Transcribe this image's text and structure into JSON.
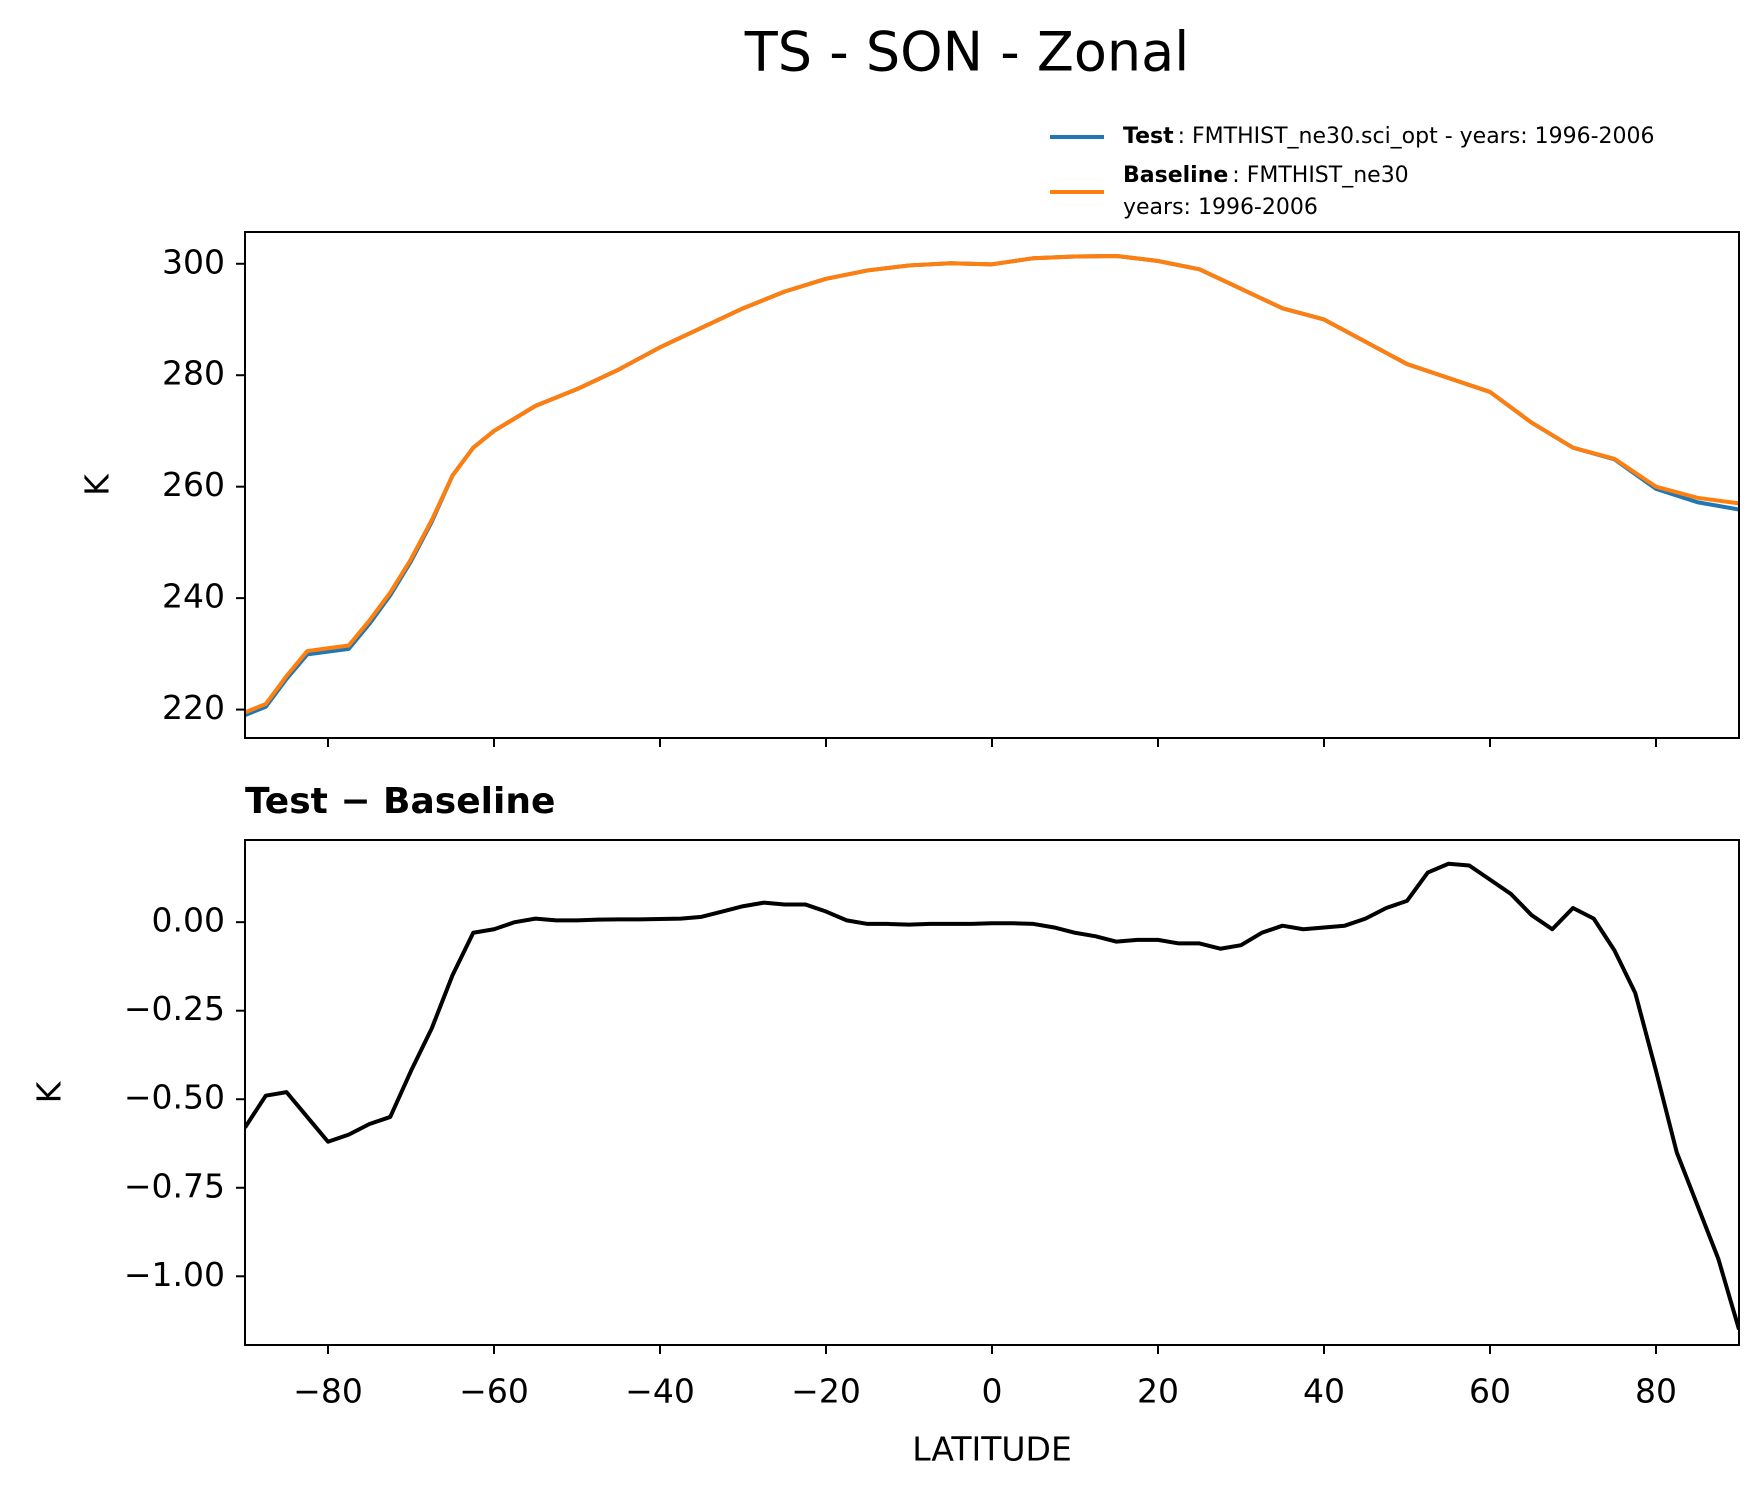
{
  "chart_data": [
    {
      "type": "line",
      "title": "TS - SON - Zonal",
      "ylabel": "K",
      "x": [
        -90,
        -87.5,
        -85,
        -82.5,
        -80,
        -77.5,
        -75,
        -72.5,
        -70,
        -67.5,
        -65,
        -62.5,
        -60,
        -55,
        -50,
        -45,
        -40,
        -35,
        -30,
        -25,
        -20,
        -15,
        -10,
        -5,
        0,
        5,
        10,
        15,
        20,
        25,
        30,
        35,
        40,
        45,
        50,
        55,
        60,
        65,
        70,
        75,
        80,
        85,
        90
      ],
      "series": [
        {
          "name": "Test",
          "label_lines": [
            ": FMTHIST_ne30.sci_opt - years: 1996-2006"
          ],
          "color": "#1f77b4",
          "values": [
            219,
            220.5,
            225.5,
            229.9,
            230.4,
            230.9,
            235.4,
            240.5,
            246.6,
            253.7,
            262,
            267,
            270,
            274.5,
            277.5,
            281,
            285,
            288.5,
            292,
            295,
            297.3,
            298.8,
            299.7,
            300.1,
            299.9,
            301,
            301.3,
            301.4,
            300.5,
            299,
            295.5,
            292,
            290,
            286,
            282,
            279.5,
            277,
            271.5,
            267,
            264.9,
            259.6,
            257.2,
            255.9
          ]
        },
        {
          "name": "Baseline",
          "label_lines": [
            ": FMTHIST_ne30",
            "years: 1996-2006"
          ],
          "color": "#ff7f0e",
          "values": [
            219.5,
            221,
            226,
            230.5,
            231,
            231.5,
            236,
            241,
            247,
            254,
            262,
            267,
            270,
            274.5,
            277.5,
            281,
            285,
            288.5,
            292,
            295,
            297.3,
            298.8,
            299.7,
            300.1,
            299.9,
            301,
            301.3,
            301.4,
            300.5,
            299,
            295.5,
            292,
            290,
            286,
            282,
            279.5,
            277,
            271.5,
            267,
            265,
            260,
            258,
            257
          ]
        }
      ],
      "xlim": [
        -90,
        90
      ],
      "xticks": [
        -80,
        -60,
        -40,
        -20,
        0,
        20,
        40,
        60,
        80
      ],
      "xtick_labels": false,
      "ylim": [
        214.9,
        305.7
      ],
      "yticks": [
        220,
        240,
        260,
        280,
        300
      ],
      "legend": "top right"
    },
    {
      "type": "line",
      "title": "Test − Baseline",
      "ylabel": "K",
      "xlabel": "LATITUDE",
      "x": [
        -90,
        -87.5,
        -85,
        -82.5,
        -80,
        -77.5,
        -75,
        -72.5,
        -70,
        -67.5,
        -65,
        -62.5,
        -60,
        -57.5,
        -55,
        -52.5,
        -50,
        -47.5,
        -45,
        -42.5,
        -40,
        -37.5,
        -35,
        -32.5,
        -30,
        -27.5,
        -25,
        -22.5,
        -20,
        -17.5,
        -15,
        -12.5,
        -10,
        -7.5,
        -5,
        -2.5,
        0,
        2.5,
        5,
        7.5,
        10,
        12.5,
        15,
        17.5,
        20,
        22.5,
        25,
        27.5,
        30,
        32.5,
        35,
        37.5,
        40,
        42.5,
        45,
        47.5,
        50,
        52.5,
        55,
        57.5,
        60,
        62.5,
        65,
        67.5,
        70,
        72.5,
        75,
        77.5,
        80,
        82.5,
        85,
        87.5,
        90
      ],
      "series": [
        {
          "name": "Test − Baseline",
          "color": "#000000",
          "values": [
            -0.58,
            -0.49,
            -0.48,
            -0.55,
            -0.62,
            -0.6,
            -0.57,
            -0.55,
            -0.42,
            -0.3,
            -0.15,
            -0.03,
            -0.02,
            0.0,
            0.01,
            0.005,
            0.005,
            0.007,
            0.008,
            0.008,
            0.009,
            0.01,
            0.015,
            0.03,
            0.045,
            0.055,
            0.05,
            0.05,
            0.03,
            0.005,
            -0.005,
            -0.005,
            -0.007,
            -0.005,
            -0.005,
            -0.005,
            -0.003,
            -0.003,
            -0.005,
            -0.015,
            -0.03,
            -0.04,
            -0.055,
            -0.05,
            -0.05,
            -0.06,
            -0.06,
            -0.075,
            -0.065,
            -0.03,
            -0.01,
            -0.02,
            -0.015,
            -0.01,
            0.01,
            0.04,
            0.06,
            0.14,
            0.165,
            0.16,
            0.12,
            0.08,
            0.02,
            -0.02,
            0.04,
            0.01,
            -0.08,
            -0.2,
            -0.42,
            -0.65,
            -0.8,
            -0.95,
            -1.15
          ]
        }
      ],
      "xlim": [
        -90,
        90
      ],
      "xticks": [
        {
          "value": -80,
          "label": "−80"
        },
        {
          "value": -60,
          "label": "−60"
        },
        {
          "value": -40,
          "label": "−40"
        },
        {
          "value": -20,
          "label": "−20"
        },
        0,
        20,
        40,
        60,
        80
      ],
      "xtick_labels": true,
      "ylim": [
        -1.194,
        0.232
      ],
      "yticks": [
        {
          "value": 0,
          "label": "0.00"
        },
        {
          "value": -0.25,
          "label": "−0.25"
        },
        {
          "value": -0.5,
          "label": "−0.50"
        },
        {
          "value": -0.75,
          "label": "−0.75"
        },
        {
          "value": -1,
          "label": "−1.00"
        }
      ]
    }
  ]
}
